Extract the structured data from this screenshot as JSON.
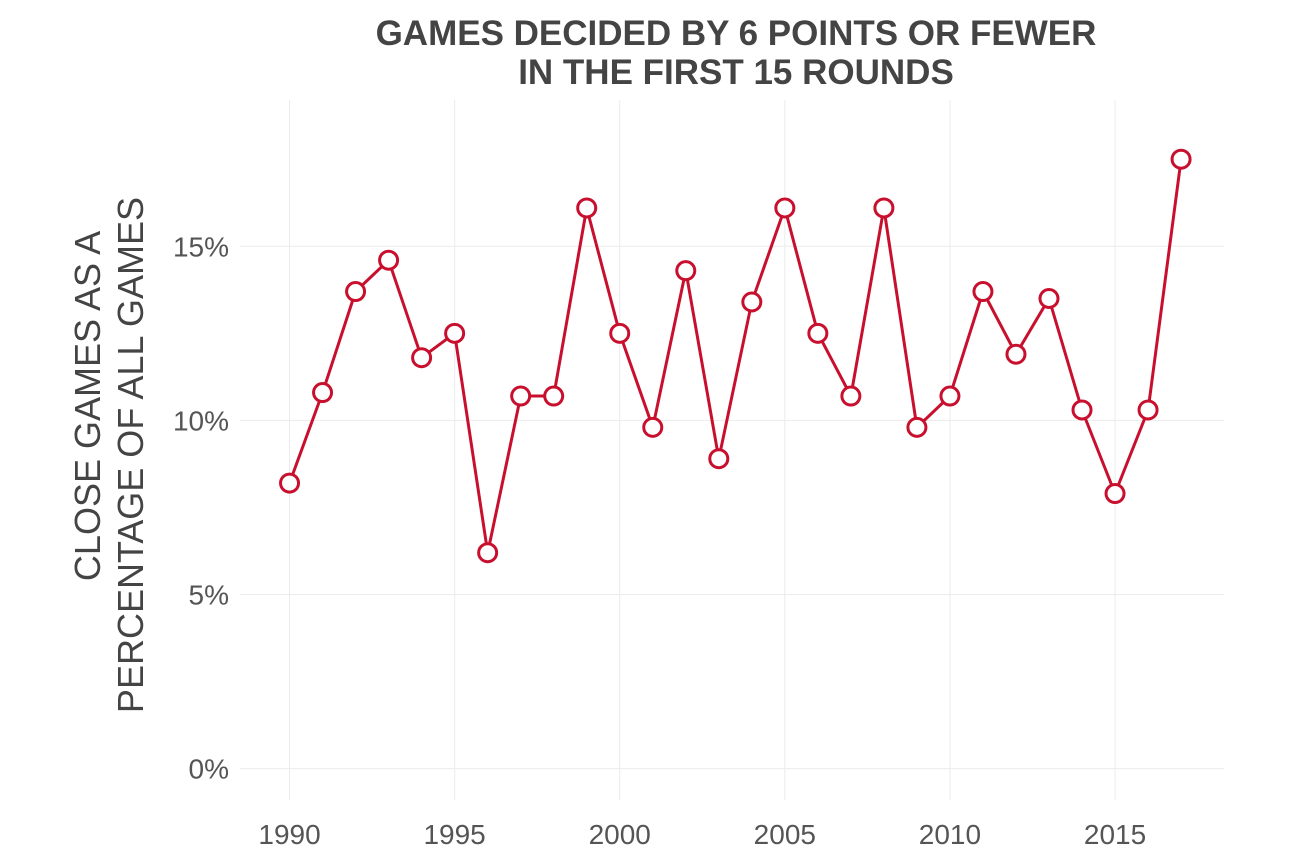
{
  "chart_data": {
    "type": "line",
    "title_lines": [
      "GAMES DECIDED BY 6 POINTS OR FEWER",
      "IN THE FIRST 15 ROUNDS"
    ],
    "xlabel": "",
    "ylabel_lines": [
      "CLOSE GAMES AS A",
      "PERCENTAGE OF ALL GAMES"
    ],
    "x": [
      1990,
      1991,
      1992,
      1993,
      1994,
      1995,
      1996,
      1997,
      1998,
      1999,
      2000,
      2001,
      2002,
      2003,
      2004,
      2005,
      2006,
      2007,
      2008,
      2009,
      2010,
      2011,
      2012,
      2013,
      2014,
      2015,
      2016,
      2017
    ],
    "series": [
      {
        "values": [
          8.2,
          10.8,
          13.7,
          14.6,
          11.8,
          12.5,
          6.2,
          10.7,
          10.7,
          16.1,
          12.5,
          9.8,
          14.3,
          8.9,
          13.4,
          16.1,
          12.5,
          10.7,
          16.1,
          9.8,
          10.7,
          13.7,
          11.9,
          13.5,
          10.3,
          7.9,
          10.3,
          17.5
        ]
      }
    ],
    "xticks": [
      1990,
      1995,
      2000,
      2005,
      2010,
      2015
    ],
    "xtick_labels": [
      "1990",
      "1995",
      "2000",
      "2005",
      "2010",
      "2015"
    ],
    "yticks": [
      0,
      5,
      10,
      15
    ],
    "ytick_labels": [
      "0%",
      "5%",
      "10%",
      "15%"
    ],
    "xlim": [
      1988.5,
      2018.3
    ],
    "ylim": [
      -0.9,
      19.2
    ],
    "grid": true,
    "legend": "none",
    "colors": {
      "line": "#c8102e",
      "marker_fill": "#ffffff",
      "grid": "#ececec",
      "text": "#444444"
    }
  }
}
